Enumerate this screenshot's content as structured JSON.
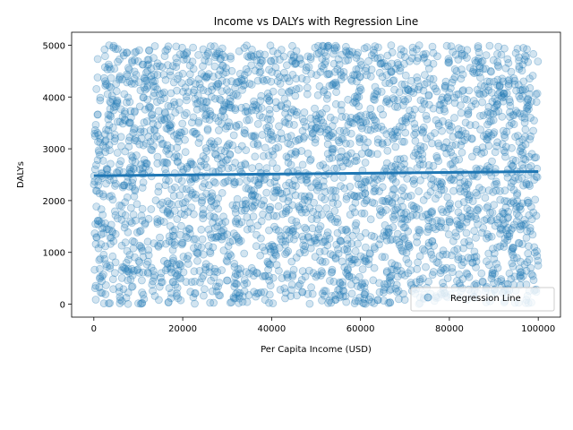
{
  "chart_data": {
    "type": "scatter",
    "title": "Income vs DALYs with Regression Line",
    "xlabel": "Per Capita Income (USD)",
    "ylabel": "DALYs",
    "xlim": [
      -5000,
      105000
    ],
    "ylim": [
      -250,
      5250
    ],
    "xticks": [
      0,
      20000,
      40000,
      60000,
      80000,
      100000
    ],
    "yticks": [
      0,
      1000,
      2000,
      3000,
      4000,
      5000
    ],
    "grid": false,
    "legend": {
      "position": "lower right",
      "entries": [
        "Regression Line"
      ]
    },
    "series": [
      {
        "type": "scatter",
        "color": "#1f77b4",
        "alpha": 0.2,
        "point_count": 3000,
        "x_range": [
          0,
          100000
        ],
        "y_range": [
          0,
          5000
        ],
        "points": [
          [
            1200,
            850
          ],
          [
            3500,
            4200
          ],
          [
            6800,
            2300
          ],
          [
            9100,
            1200
          ],
          [
            12400,
            4900
          ],
          [
            15600,
            3100
          ],
          [
            18300,
            600
          ],
          [
            21700,
            2700
          ],
          [
            24900,
            4400
          ],
          [
            27800,
            1500
          ],
          [
            30500,
            3800
          ],
          [
            33900,
            250
          ],
          [
            36200,
            2100
          ],
          [
            39800,
            4700
          ],
          [
            42100,
            3300
          ],
          [
            45600,
            900
          ],
          [
            48300,
            2500
          ],
          [
            51700,
            4100
          ],
          [
            54200,
            1800
          ],
          [
            57900,
            3600
          ],
          [
            60400,
            400
          ],
          [
            63800,
            2900
          ],
          [
            66100,
            4800
          ],
          [
            69500,
            1300
          ],
          [
            72300,
            3400
          ],
          [
            75800,
            200
          ],
          [
            78200,
            2200
          ],
          [
            81600,
            4500
          ],
          [
            84100,
            1700
          ],
          [
            87400,
            3900
          ],
          [
            90900,
            700
          ],
          [
            93200,
            2600
          ],
          [
            96700,
            4300
          ],
          [
            99100,
            1100
          ],
          [
            4800,
            3200
          ],
          [
            11300,
            100
          ],
          [
            17800,
            4600
          ],
          [
            26400,
            2000
          ],
          [
            34700,
            3700
          ],
          [
            43900,
            1400
          ],
          [
            52800,
            4950
          ],
          [
            61200,
            2400
          ],
          [
            70700,
            600
          ],
          [
            79900,
            3000
          ],
          [
            88800,
            4200
          ],
          [
            97600,
            2000
          ],
          [
            8200,
            3500
          ],
          [
            23100,
            1000
          ],
          [
            47200,
            3200
          ],
          [
            85300,
            800
          ]
        ]
      },
      {
        "type": "line",
        "name": "Regression Line",
        "color": "#1f77b4",
        "x": [
          0,
          100000
        ],
        "y": [
          2480,
          2560
        ]
      }
    ]
  }
}
